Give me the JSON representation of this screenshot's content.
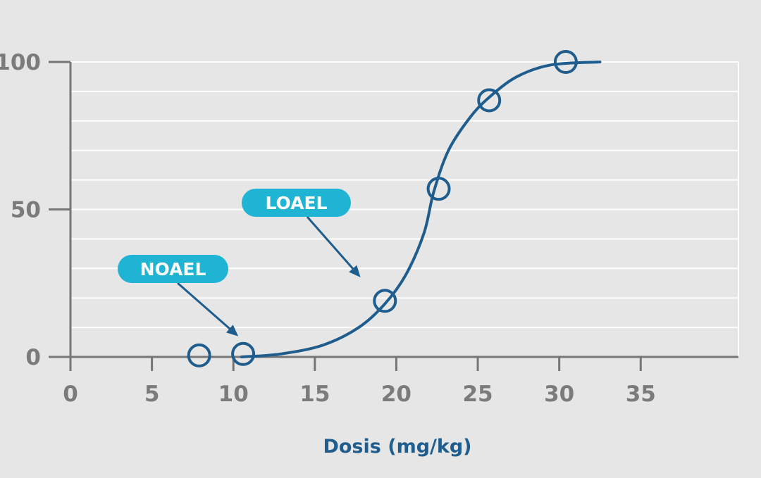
{
  "chart_data": {
    "type": "line",
    "title": "",
    "xlabel": "Dosis (mg/kg)",
    "ylabel": "",
    "xlim": [
      0,
      41
    ],
    "ylim": [
      0,
      100
    ],
    "grid": true,
    "x_ticks": [
      0,
      5,
      10,
      15,
      20,
      25,
      30,
      35
    ],
    "y_ticks": [
      0,
      50,
      100
    ],
    "y_minor_ticks": [
      10,
      20,
      30,
      40,
      60,
      70,
      80,
      90
    ],
    "series": [
      {
        "type": "curve",
        "points": [
          {
            "x": 10.5,
            "y": 0
          },
          {
            "x": 12.9,
            "y": 1
          },
          {
            "x": 15.5,
            "y": 4
          },
          {
            "x": 17.7,
            "y": 10
          },
          {
            "x": 19.3,
            "y": 18
          },
          {
            "x": 20.6,
            "y": 28
          },
          {
            "x": 21.7,
            "y": 42
          },
          {
            "x": 22.3,
            "y": 56
          },
          {
            "x": 23.2,
            "y": 70
          },
          {
            "x": 24.5,
            "y": 81
          },
          {
            "x": 25.7,
            "y": 88
          },
          {
            "x": 27.4,
            "y": 95
          },
          {
            "x": 29.5,
            "y": 99
          },
          {
            "x": 32.5,
            "y": 100
          }
        ]
      },
      {
        "type": "markers",
        "points": [
          {
            "x": 7.9,
            "y": 0.5
          },
          {
            "x": 10.6,
            "y": 1.0
          },
          {
            "x": 19.3,
            "y": 19
          },
          {
            "x": 22.6,
            "y": 57
          },
          {
            "x": 25.7,
            "y": 87
          },
          {
            "x": 30.4,
            "y": 100
          }
        ]
      }
    ],
    "annotations": [
      {
        "text": "NOAEL",
        "arrow_to": {
          "x": 10.3,
          "y": 7
        }
      },
      {
        "text": "LOAEL",
        "arrow_to": {
          "x": 17.8,
          "y": 27
        }
      }
    ],
    "colors": {
      "background": "#e6e6e6",
      "plot_bg": "#e6e6e6",
      "grid": "#ffffff",
      "axis": "#767676",
      "tick_label": "#7b7b7b",
      "curve": "#1f5d8e",
      "label_fill": "#1fb4d4",
      "label_text": "#ffffff",
      "xlabel": "#1f5d8e"
    }
  }
}
